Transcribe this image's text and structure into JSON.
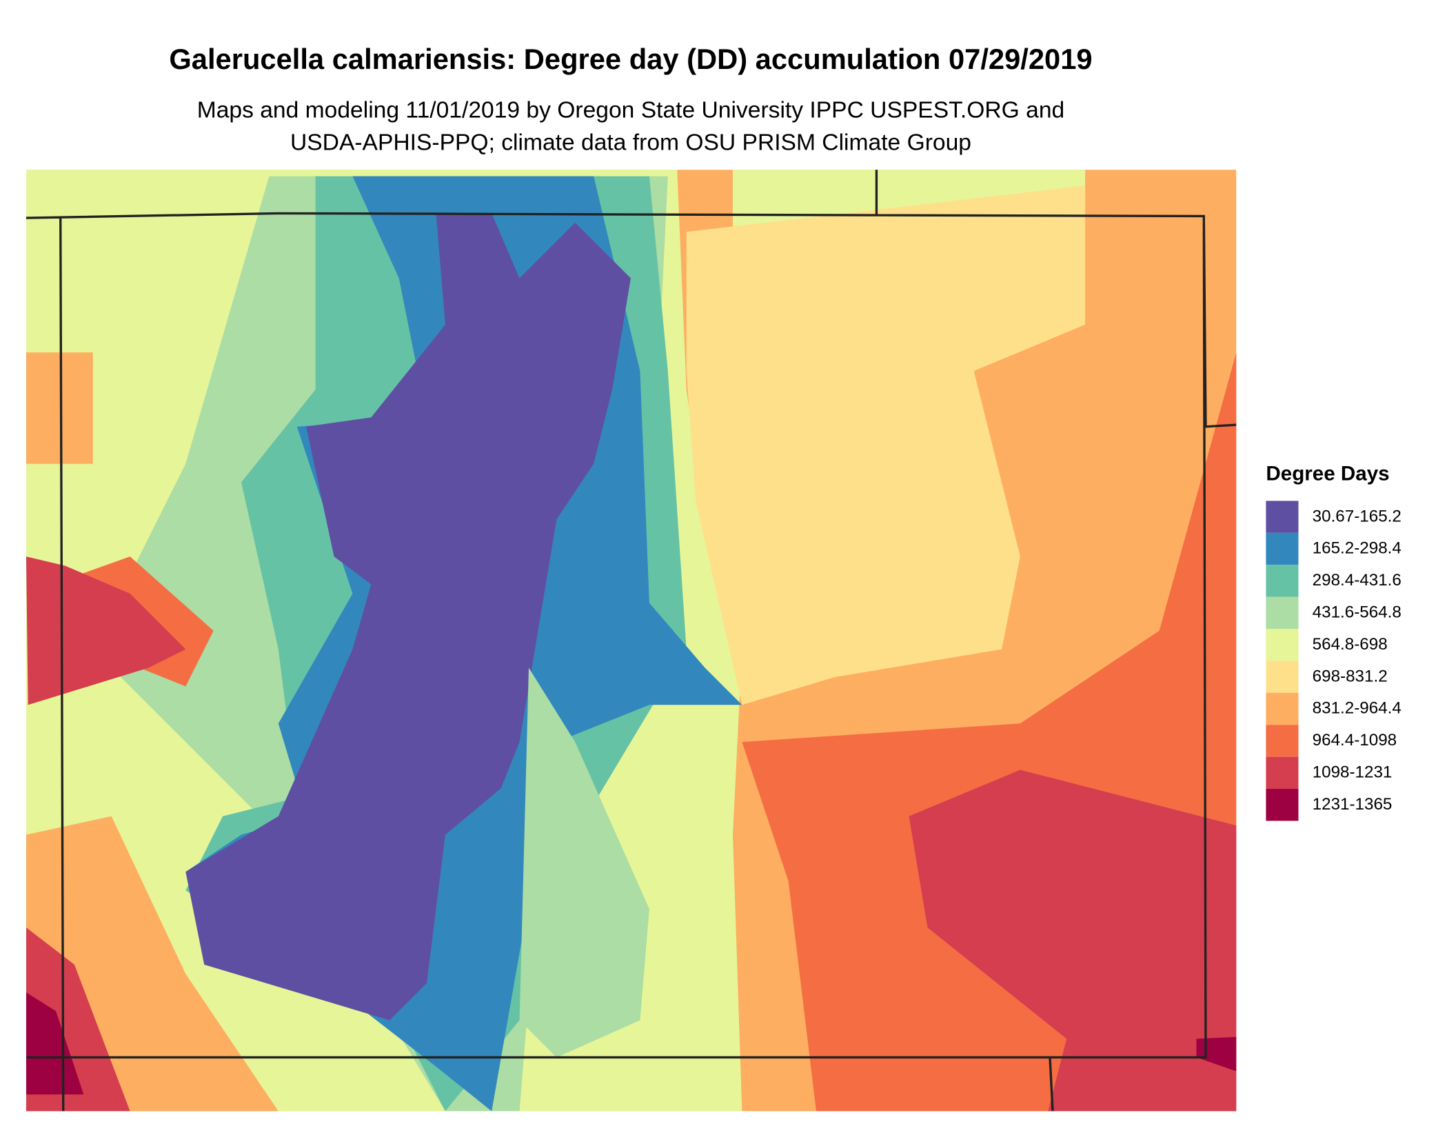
{
  "title": "Galerucella calmariensis: Degree day (DD) accumulation 07/29/2019",
  "subtitle_lines": [
    "Maps and modeling 11/01/2019 by Oregon State University IPPC USPEST.ORG and",
    "USDA-APHIS-PPQ; climate data from OSU PRISM Climate Group"
  ],
  "legend": {
    "title": "Degree Days",
    "items": [
      {
        "label": "30.67-165.2",
        "color": "#5E4FA2"
      },
      {
        "label": "165.2-298.4",
        "color": "#3288BD"
      },
      {
        "label": "298.4-431.6",
        "color": "#66C2A5"
      },
      {
        "label": "431.6-564.8",
        "color": "#ABDDA4"
      },
      {
        "label": "564.8-698",
        "color": "#E6F598"
      },
      {
        "label": "698-831.2",
        "color": "#FEE08B"
      },
      {
        "label": "831.2-964.4",
        "color": "#FDAE61"
      },
      {
        "label": "964.4-1098",
        "color": "#F46D43"
      },
      {
        "label": "1098-1231",
        "color": "#D53E4F"
      },
      {
        "label": "1231-1365",
        "color": "#9E0142"
      }
    ]
  }
}
